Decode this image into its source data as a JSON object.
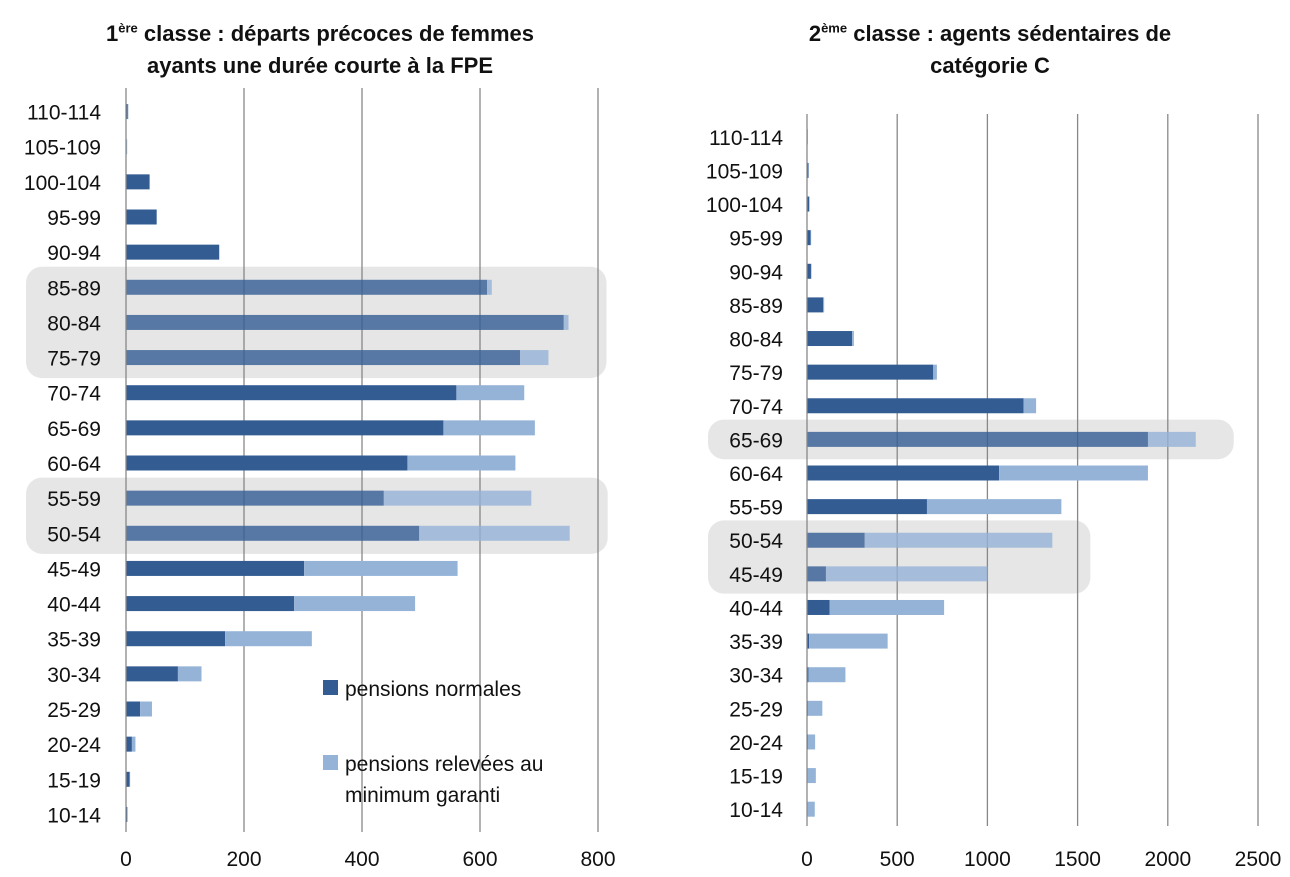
{
  "chart_data": [
    {
      "type": "bar",
      "orientation": "horizontal",
      "stacked": true,
      "title_prefix": "1",
      "title_superscript": "ère",
      "title_line1_rest": " classe : départs précoces de femmes",
      "title_line2": "ayants une durée courte à la FPE",
      "categories": [
        "110-114",
        "105-109",
        "100-104",
        "95-99",
        "90-94",
        "85-89",
        "80-84",
        "75-79",
        "70-74",
        "65-69",
        "60-64",
        "55-59",
        "50-54",
        "45-49",
        "40-44",
        "35-39",
        "30-34",
        "25-29",
        "20-24",
        "15-19",
        "10-14"
      ],
      "series": [
        {
          "name": "pensions normales",
          "color": "#335c93",
          "values": [
            3,
            1,
            40,
            52,
            158,
            612,
            742,
            668,
            560,
            538,
            477,
            437,
            497,
            302,
            285,
            168,
            88,
            24,
            10,
            6,
            2
          ]
        },
        {
          "name": "pensions relevées au minimum garanti",
          "color": "#95b3d7",
          "values": [
            1,
            1,
            0,
            0,
            0,
            8,
            8,
            48,
            115,
            155,
            183,
            250,
            255,
            260,
            205,
            147,
            40,
            20,
            6,
            1,
            1
          ]
        }
      ],
      "xlim": [
        0,
        800
      ],
      "xticks": [
        0,
        200,
        400,
        600,
        800
      ],
      "grid": true,
      "highlighted_categories": [
        "85-89",
        "80-84",
        "75-79",
        "55-59",
        "50-54"
      ],
      "legend_placement": "bottom-right"
    },
    {
      "type": "bar",
      "orientation": "horizontal",
      "stacked": true,
      "title_prefix": "2",
      "title_superscript": "ème",
      "title_line1_rest": " classe : agents sédentaires de",
      "title_line2": "catégorie C",
      "categories": [
        "110-114",
        "105-109",
        "100-104",
        "95-99",
        "90-94",
        "85-89",
        "80-84",
        "75-79",
        "70-74",
        "65-69",
        "60-64",
        "55-59",
        "50-54",
        "45-49",
        "40-44",
        "35-39",
        "30-34",
        "25-29",
        "20-24",
        "15-19",
        "10-14"
      ],
      "series": [
        {
          "name": "pensions normales",
          "color": "#335c93",
          "values": [
            3,
            8,
            12,
            20,
            22,
            90,
            250,
            700,
            1200,
            1890,
            1065,
            665,
            320,
            105,
            125,
            12,
            8,
            5,
            5,
            4,
            3
          ]
        },
        {
          "name": "pensions relevées au minimum garanti",
          "color": "#95b3d7",
          "values": [
            2,
            2,
            3,
            3,
            3,
            5,
            10,
            20,
            70,
            265,
            825,
            745,
            1040,
            895,
            635,
            435,
            205,
            80,
            40,
            45,
            40
          ]
        }
      ],
      "xlim": [
        0,
        2500
      ],
      "xticks": [
        0,
        500,
        1000,
        1500,
        2000,
        2500
      ],
      "grid": true,
      "highlighted_categories": [
        "65-69",
        "50-54",
        "45-49"
      ]
    }
  ]
}
